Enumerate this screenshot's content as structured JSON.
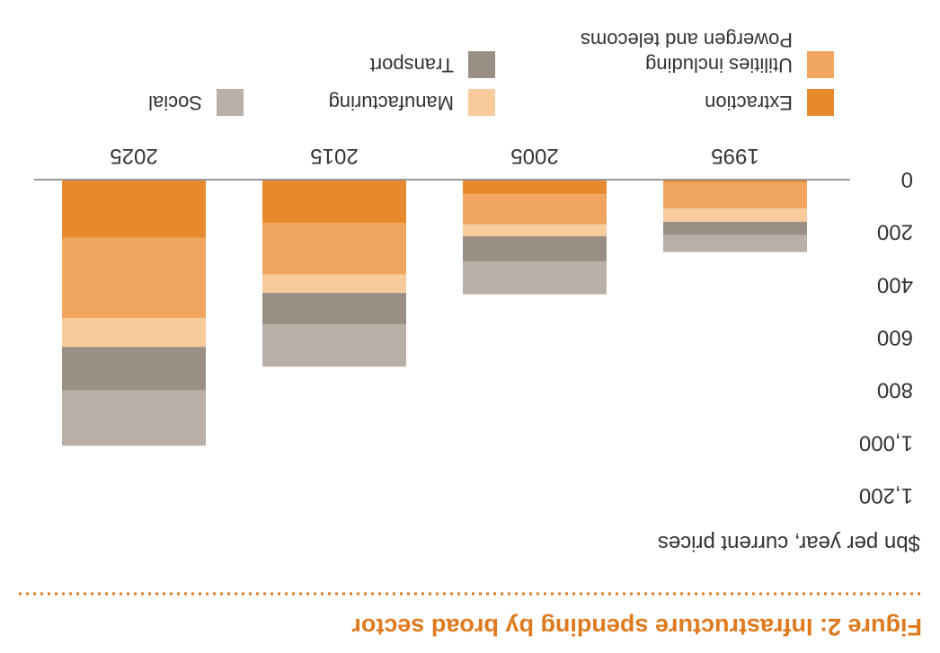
{
  "figure_title": "Figure 2: Infrastructure spending by broad sector",
  "ylabel": "$bn per year, current prices",
  "colors": {
    "extraction": "#E8892D",
    "utilities": "#F0A65E",
    "manufacturing": "#F8CB9C",
    "transport": "#9A8F85",
    "social": "#B8AFA6",
    "title": "#E07A1E",
    "text": "#333333",
    "axis": "#9A9A9A"
  },
  "chart_data": {
    "type": "bar",
    "stacked": true,
    "orientation": "upside-down (rotated 180 degrees)",
    "categories": [
      "1995",
      "2005",
      "2015",
      "2025"
    ],
    "series": [
      {
        "name": "Extraction",
        "color_key": "extraction",
        "values": [
          10,
          55,
          165,
          220
        ]
      },
      {
        "name": "Utilities including Powergen and telecoms",
        "color_key": "utilities",
        "values": [
          100,
          115,
          195,
          305
        ]
      },
      {
        "name": "Manufacturing",
        "color_key": "manufacturing",
        "values": [
          50,
          45,
          70,
          110
        ]
      },
      {
        "name": "Transport",
        "color_key": "transport",
        "values": [
          50,
          95,
          120,
          165
        ]
      },
      {
        "name": "Social",
        "color_key": "social",
        "values": [
          65,
          125,
          160,
          210
        ]
      }
    ],
    "ylim": [
      0,
      1200
    ],
    "yticks": [
      0,
      200,
      400,
      600,
      800,
      1000,
      1200
    ],
    "ytick_labels": [
      "0",
      "200",
      "400",
      "600",
      "800",
      "1,000",
      "1,200"
    ],
    "xlabel": "",
    "ylabel": "$bn per year, current prices",
    "grid": false,
    "legend_position": "top"
  }
}
